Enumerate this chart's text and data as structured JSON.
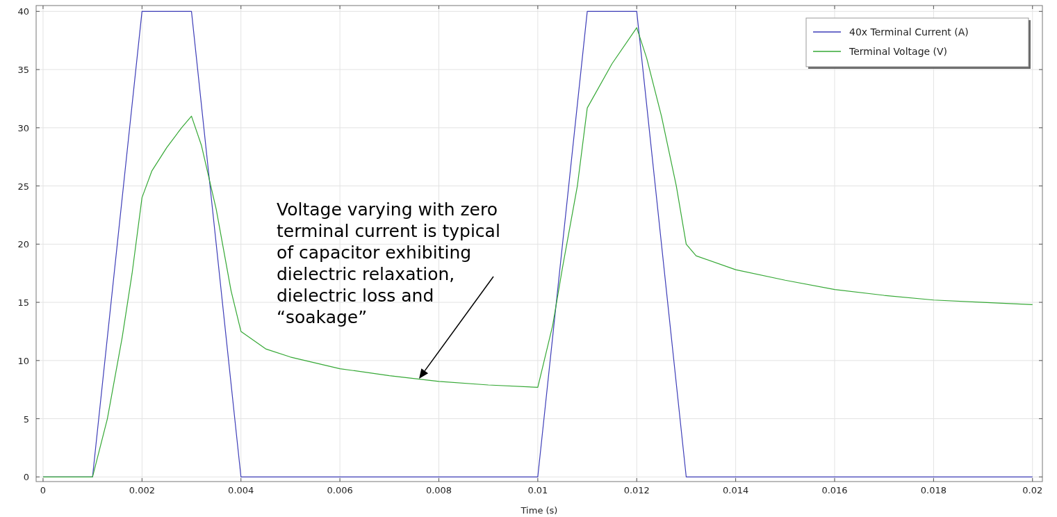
{
  "chart_data": {
    "type": "line",
    "xlabel": "Time (s)",
    "xlim": [
      -0.00014,
      0.0202
    ],
    "ylim": [
      -0.4,
      40.5
    ],
    "xticks": [
      0,
      0.002,
      0.004,
      0.006,
      0.008,
      0.01,
      0.012,
      0.014,
      0.016,
      0.018,
      0.02
    ],
    "yticks": [
      0,
      5,
      10,
      15,
      20,
      25,
      30,
      35,
      40
    ],
    "grid": true,
    "legend": "top right",
    "line_style": "solid",
    "marker": "none",
    "series": [
      {
        "name": "40x Terminal Current (A)",
        "color": "#3d3db8",
        "x": [
          0,
          0.001,
          0.002,
          0.003,
          0.004,
          0.01,
          0.011,
          0.012,
          0.013,
          0.02
        ],
        "values": [
          0,
          0,
          40,
          40,
          0,
          0,
          40,
          40,
          0,
          0
        ]
      },
      {
        "name": "Terminal Voltage (V)",
        "color": "#35a835",
        "x": [
          0,
          0.001,
          0.0013,
          0.0016,
          0.0018,
          0.002,
          0.0022,
          0.0025,
          0.0028,
          0.003,
          0.0032,
          0.0035,
          0.0038,
          0.004,
          0.0045,
          0.005,
          0.006,
          0.007,
          0.008,
          0.009,
          0.01,
          0.0103,
          0.0105,
          0.0108,
          0.011,
          0.0115,
          0.012,
          0.0122,
          0.0125,
          0.0128,
          0.013,
          0.0132,
          0.014,
          0.015,
          0.016,
          0.017,
          0.018,
          0.019,
          0.02
        ],
        "values": [
          0,
          0,
          5,
          12,
          17.5,
          24,
          26.3,
          28.3,
          30,
          31,
          28.5,
          23,
          16,
          12.5,
          11,
          10.3,
          9.3,
          8.7,
          8.2,
          7.9,
          7.7,
          13,
          18,
          25,
          31.7,
          35.5,
          38.6,
          36,
          31,
          25,
          20,
          19,
          17.8,
          16.9,
          16.1,
          15.6,
          15.2,
          15,
          14.8
        ]
      }
    ],
    "annotations": [
      "Voltage varying with zero terminal current is typical of capacitor exhibiting dielectric relaxation, dielectric loss and “soakage”"
    ]
  }
}
